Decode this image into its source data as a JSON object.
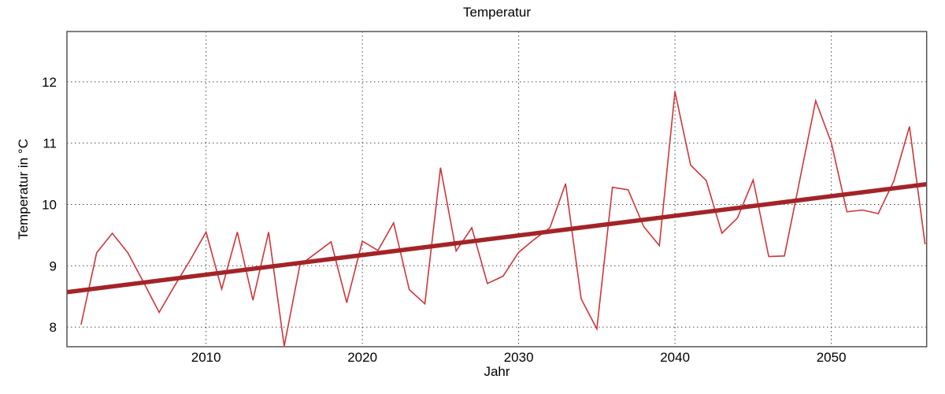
{
  "chart_data": {
    "type": "line",
    "title": "Temperatur",
    "xlabel": "Jahr",
    "ylabel": "Temperatur in °C",
    "xlim": [
      2001.1,
      2056.1
    ],
    "ylim": [
      7.68,
      12.82
    ],
    "xticks": [
      2010,
      2020,
      2030,
      2040,
      2050
    ],
    "yticks": [
      8,
      9,
      10,
      11,
      12
    ],
    "grid": "dotted",
    "legend": "none",
    "x": [
      2002,
      2003,
      2004,
      2005,
      2006,
      2007,
      2008,
      2009,
      2010,
      2011,
      2012,
      2013,
      2014,
      2015,
      2016,
      2017,
      2018,
      2019,
      2020,
      2021,
      2022,
      2023,
      2024,
      2025,
      2026,
      2027,
      2028,
      2029,
      2030,
      2031,
      2032,
      2033,
      2034,
      2035,
      2036,
      2037,
      2038,
      2039,
      2040,
      2041,
      2042,
      2043,
      2044,
      2045,
      2046,
      2047,
      2048,
      2049,
      2050,
      2051,
      2052,
      2053,
      2054,
      2055,
      2056
    ],
    "series": [
      {
        "name": "temperature",
        "values": [
          8.04,
          9.21,
          9.53,
          9.21,
          8.73,
          8.24,
          8.68,
          9.1,
          9.55,
          8.62,
          9.55,
          8.44,
          9.55,
          7.69,
          9.01,
          9.2,
          9.39,
          8.4,
          9.4,
          9.25,
          9.7,
          8.61,
          8.38,
          10.6,
          9.24,
          9.62,
          8.71,
          8.83,
          9.22,
          9.43,
          9.62,
          10.34,
          8.46,
          7.97,
          10.28,
          10.24,
          9.64,
          9.33,
          11.84,
          10.64,
          10.39,
          9.53,
          9.78,
          10.4,
          9.15,
          9.16,
          10.42,
          11.69,
          11.01,
          9.88,
          9.91,
          9.85,
          10.38,
          11.27,
          9.35
        ]
      },
      {
        "name": "trend",
        "trend_x": [
          2001.1,
          2056.1
        ],
        "trend_values": [
          8.57,
          10.33
        ]
      }
    ],
    "colors": {
      "series_line": "#d03538",
      "trend_line": "#a32428",
      "grid": "#4a4a4a",
      "frame": "#555555",
      "text": "#000000",
      "background": "#ffffff"
    }
  }
}
